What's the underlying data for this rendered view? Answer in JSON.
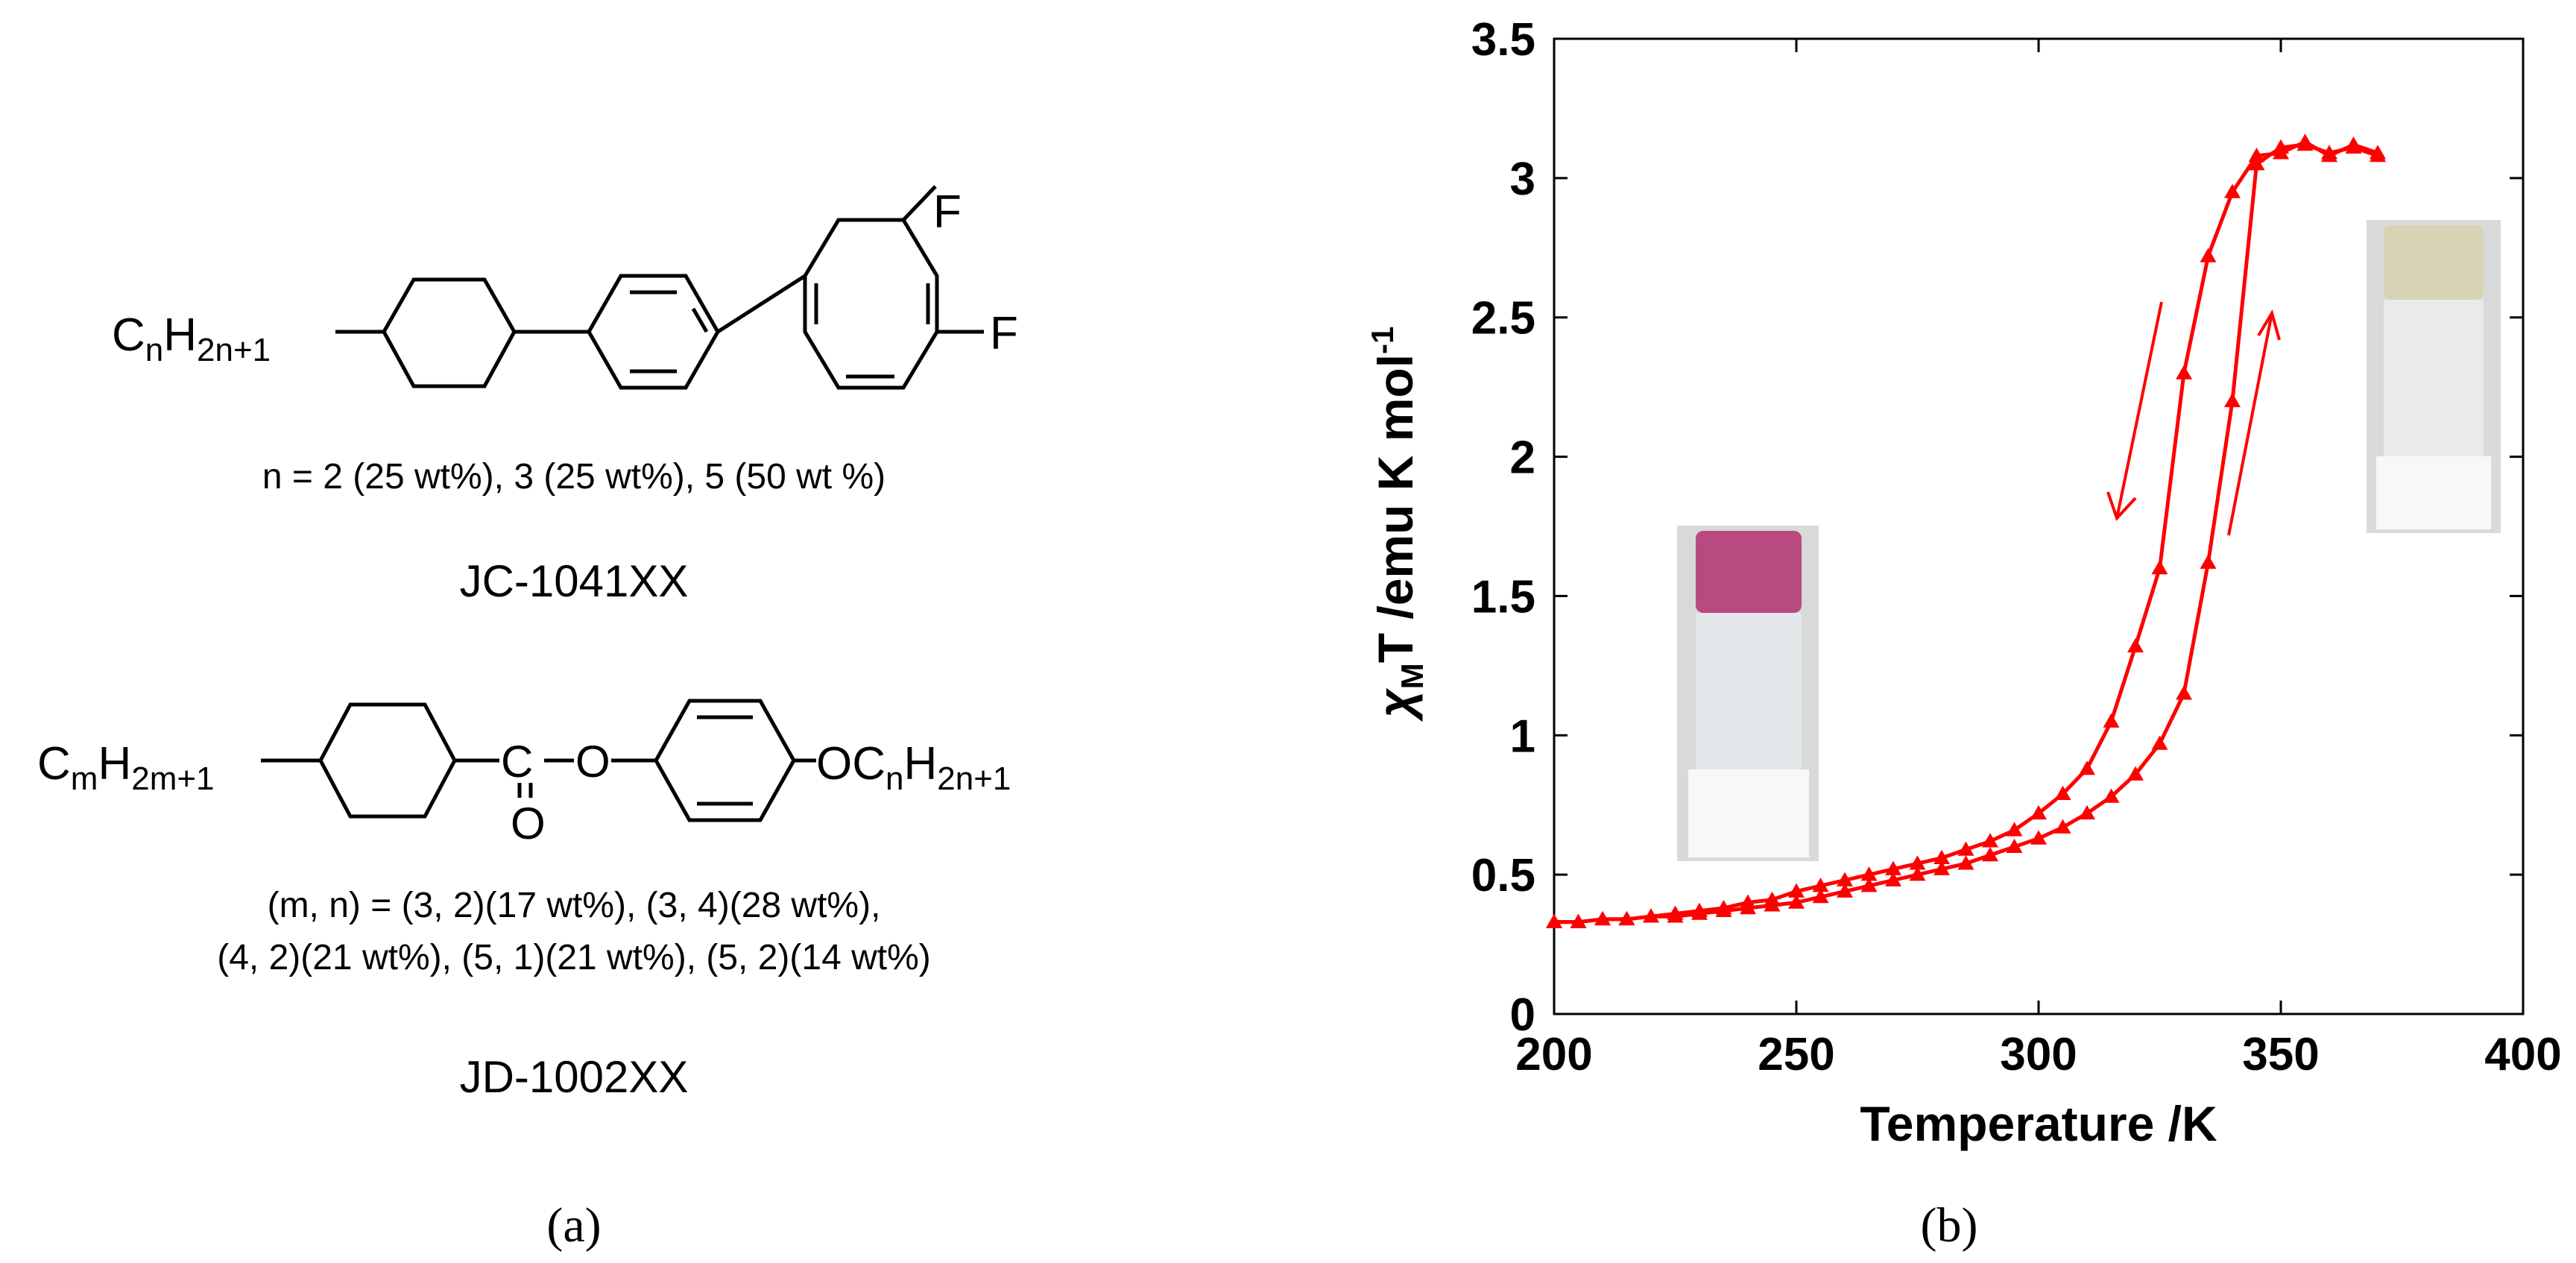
{
  "panel_a": {
    "compound1": {
      "substituent": {
        "main": "C",
        "sub1": "n",
        "mid": "H",
        "sub2": "2n+1"
      },
      "fluoro_top": "F",
      "fluoro_right": "F",
      "composition": "n = 2 (25 wt%), 3 (25 wt%), 5 (50 wt %)",
      "name": "JC-1041XX"
    },
    "compound2": {
      "left_group": {
        "main": "C",
        "sub1": "m",
        "mid": "H",
        "sub2": "2m+1"
      },
      "carbonyl_c": "C",
      "ester_o": "O",
      "carbonyl_o": "O",
      "right_group": {
        "main": "OC",
        "sub1": "n",
        "mid": "H",
        "sub2": "2n+1"
      },
      "composition_line1": "(m, n) = (3, 2)(17  wt%), (3, 4)(28  wt%),",
      "composition_line2": "(4, 2)(21  wt%), (5, 1)(21  wt%), (5, 2)(14 wt%)",
      "name": "JD-1002XX"
    },
    "caption": "(a)"
  },
  "panel_b": {
    "caption": "(b)",
    "photo_low_t": {
      "description_color": "#b94a80"
    },
    "photo_high_t": {
      "description_color": "#d8d3b5"
    }
  },
  "chart_data": {
    "type": "line",
    "xlabel": "Temperature /K",
    "ylabel": {
      "chi": "χ",
      "sub": "M",
      "rest": "T /emu K mol",
      "sup": "-1"
    },
    "xlim": [
      200,
      400
    ],
    "ylim": [
      0,
      3.5
    ],
    "xticks": [
      "200",
      "250",
      "300",
      "350",
      "400"
    ],
    "yticks": [
      "0",
      "0.5",
      "1",
      "1.5",
      "2",
      "2.5",
      "3",
      "3.5"
    ],
    "grid": false,
    "color": "#ff0000",
    "marker": "triangle",
    "series": [
      {
        "name": "heating",
        "x": [
          200,
          205,
          210,
          215,
          220,
          225,
          230,
          235,
          240,
          245,
          250,
          255,
          260,
          265,
          270,
          275,
          280,
          285,
          290,
          295,
          300,
          305,
          310,
          315,
          320,
          325,
          330,
          335,
          340,
          345,
          350,
          355,
          360,
          365,
          370
        ],
        "y": [
          0.33,
          0.33,
          0.34,
          0.34,
          0.35,
          0.35,
          0.36,
          0.37,
          0.38,
          0.39,
          0.4,
          0.42,
          0.44,
          0.46,
          0.48,
          0.5,
          0.52,
          0.54,
          0.57,
          0.6,
          0.63,
          0.67,
          0.72,
          0.78,
          0.86,
          0.97,
          1.15,
          1.62,
          2.2,
          3.05,
          3.11,
          3.12,
          3.09,
          3.11,
          3.08
        ]
      },
      {
        "name": "cooling",
        "x": [
          370,
          365,
          360,
          355,
          350,
          345,
          340,
          335,
          330,
          325,
          320,
          315,
          310,
          305,
          300,
          295,
          290,
          285,
          280,
          275,
          270,
          265,
          260,
          255,
          250,
          245,
          240,
          235,
          230,
          225,
          220,
          215,
          210,
          205,
          200
        ],
        "y": [
          3.09,
          3.12,
          3.08,
          3.13,
          3.09,
          3.08,
          2.95,
          2.72,
          2.3,
          1.6,
          1.32,
          1.05,
          0.88,
          0.79,
          0.72,
          0.66,
          0.62,
          0.59,
          0.56,
          0.54,
          0.52,
          0.5,
          0.48,
          0.46,
          0.44,
          0.41,
          0.4,
          0.38,
          0.37,
          0.36,
          0.35,
          0.34,
          0.34,
          0.33,
          0.33
        ]
      }
    ]
  }
}
